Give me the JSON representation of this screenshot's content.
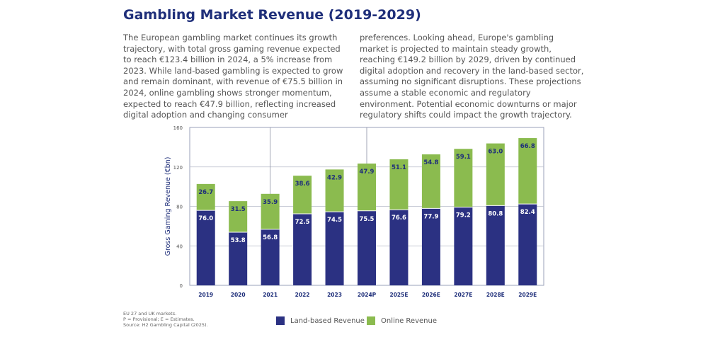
{
  "title": "Gambling Market Revenue (2019-2029)",
  "paragraph_left": "The European gambling market continues its growth trajectory, with total gross gaming revenue expected to reach €123.4 billion in 2024, a 5% increase from 2023. While land-based gambling is expected to grow and remain dominant, with revenue of €75.5 billion in 2024, online gambling shows stronger momentum, expected to reach €47.9 billion, reflecting increased digital adoption and changing consumer",
  "paragraph_right": "preferences. Looking ahead, Europe's gambling market is projected to maintain steady growth, reaching €149.2 billion by 2029, driven by continued digital adoption and recovery in the land-based sector, assuming no significant disruptions. These projections assume a stable economic and regulatory environment. Potential economic downturns or major regulatory shifts could impact the growth trajectory.",
  "notes": [
    "EU 27 and UK markets.",
    "P = Provisional; E = Estimates.",
    "Source: H2 Gambling Capital (2025)."
  ],
  "colors": {
    "land": "#2b3182",
    "online": "#8bbb4f",
    "title": "#1f2f7a"
  },
  "chart_data": {
    "type": "bar",
    "stacked": true,
    "categories": [
      "2019",
      "2020",
      "2021",
      "2022",
      "2023",
      "2024P",
      "2025E",
      "2026E",
      "2027E",
      "2028E",
      "2029E"
    ],
    "series": [
      {
        "name": "Land-based Revenue",
        "values": [
          76.0,
          53.8,
          56.8,
          72.5,
          74.5,
          75.5,
          76.6,
          77.9,
          79.2,
          80.8,
          82.4
        ]
      },
      {
        "name": "Online Revenue",
        "values": [
          26.7,
          31.5,
          35.9,
          38.6,
          42.9,
          47.9,
          51.1,
          54.8,
          59.1,
          63.0,
          66.8
        ]
      }
    ],
    "ylabel": "Gross Gaming Revenue (€bn)",
    "xlabel": "",
    "ylim": [
      0,
      160
    ],
    "yticks": [
      0,
      40,
      80,
      120,
      160
    ],
    "legend": "bottom"
  }
}
